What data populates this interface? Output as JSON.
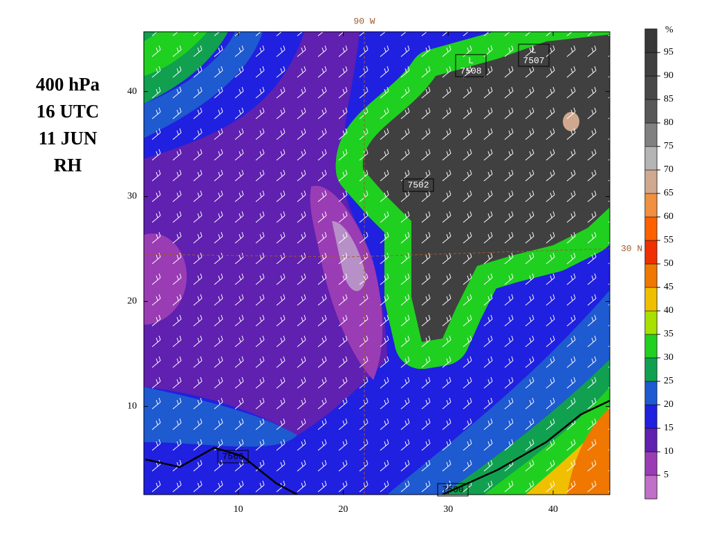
{
  "title_lines": [
    "400 hPa",
    "16 UTC",
    "11 JUN",
    "RH"
  ],
  "map": {
    "xlim": [
      1,
      45.4
    ],
    "ylim": [
      1.6,
      45.7
    ],
    "xticks": [
      10,
      20,
      30,
      40
    ],
    "yticks": [
      10,
      20,
      30,
      40
    ],
    "meridian_label": "90 W",
    "parallel_label": "30 N",
    "lows": [
      {
        "symbol": "L",
        "value": "7508"
      },
      {
        "symbol": "L",
        "value": "7507"
      }
    ],
    "height_labels": [
      "7502",
      "7566",
      "7560"
    ]
  },
  "colorbar": {
    "unit": "%",
    "levels": [
      5,
      10,
      15,
      20,
      25,
      30,
      35,
      40,
      45,
      50,
      55,
      60,
      65,
      70,
      75,
      80,
      85,
      90,
      95
    ],
    "colors": [
      "#c070c8",
      "#9a3cb4",
      "#6020b0",
      "#2020e0",
      "#1e5ad0",
      "#10a050",
      "#20d020",
      "#a8e000",
      "#f0c000",
      "#f07800",
      "#f03000",
      "#ff6000",
      "#f09040",
      "#d0a890",
      "#b4b4b4",
      "#808080",
      "#585858",
      "#484848",
      "#404040",
      "#383838"
    ]
  }
}
